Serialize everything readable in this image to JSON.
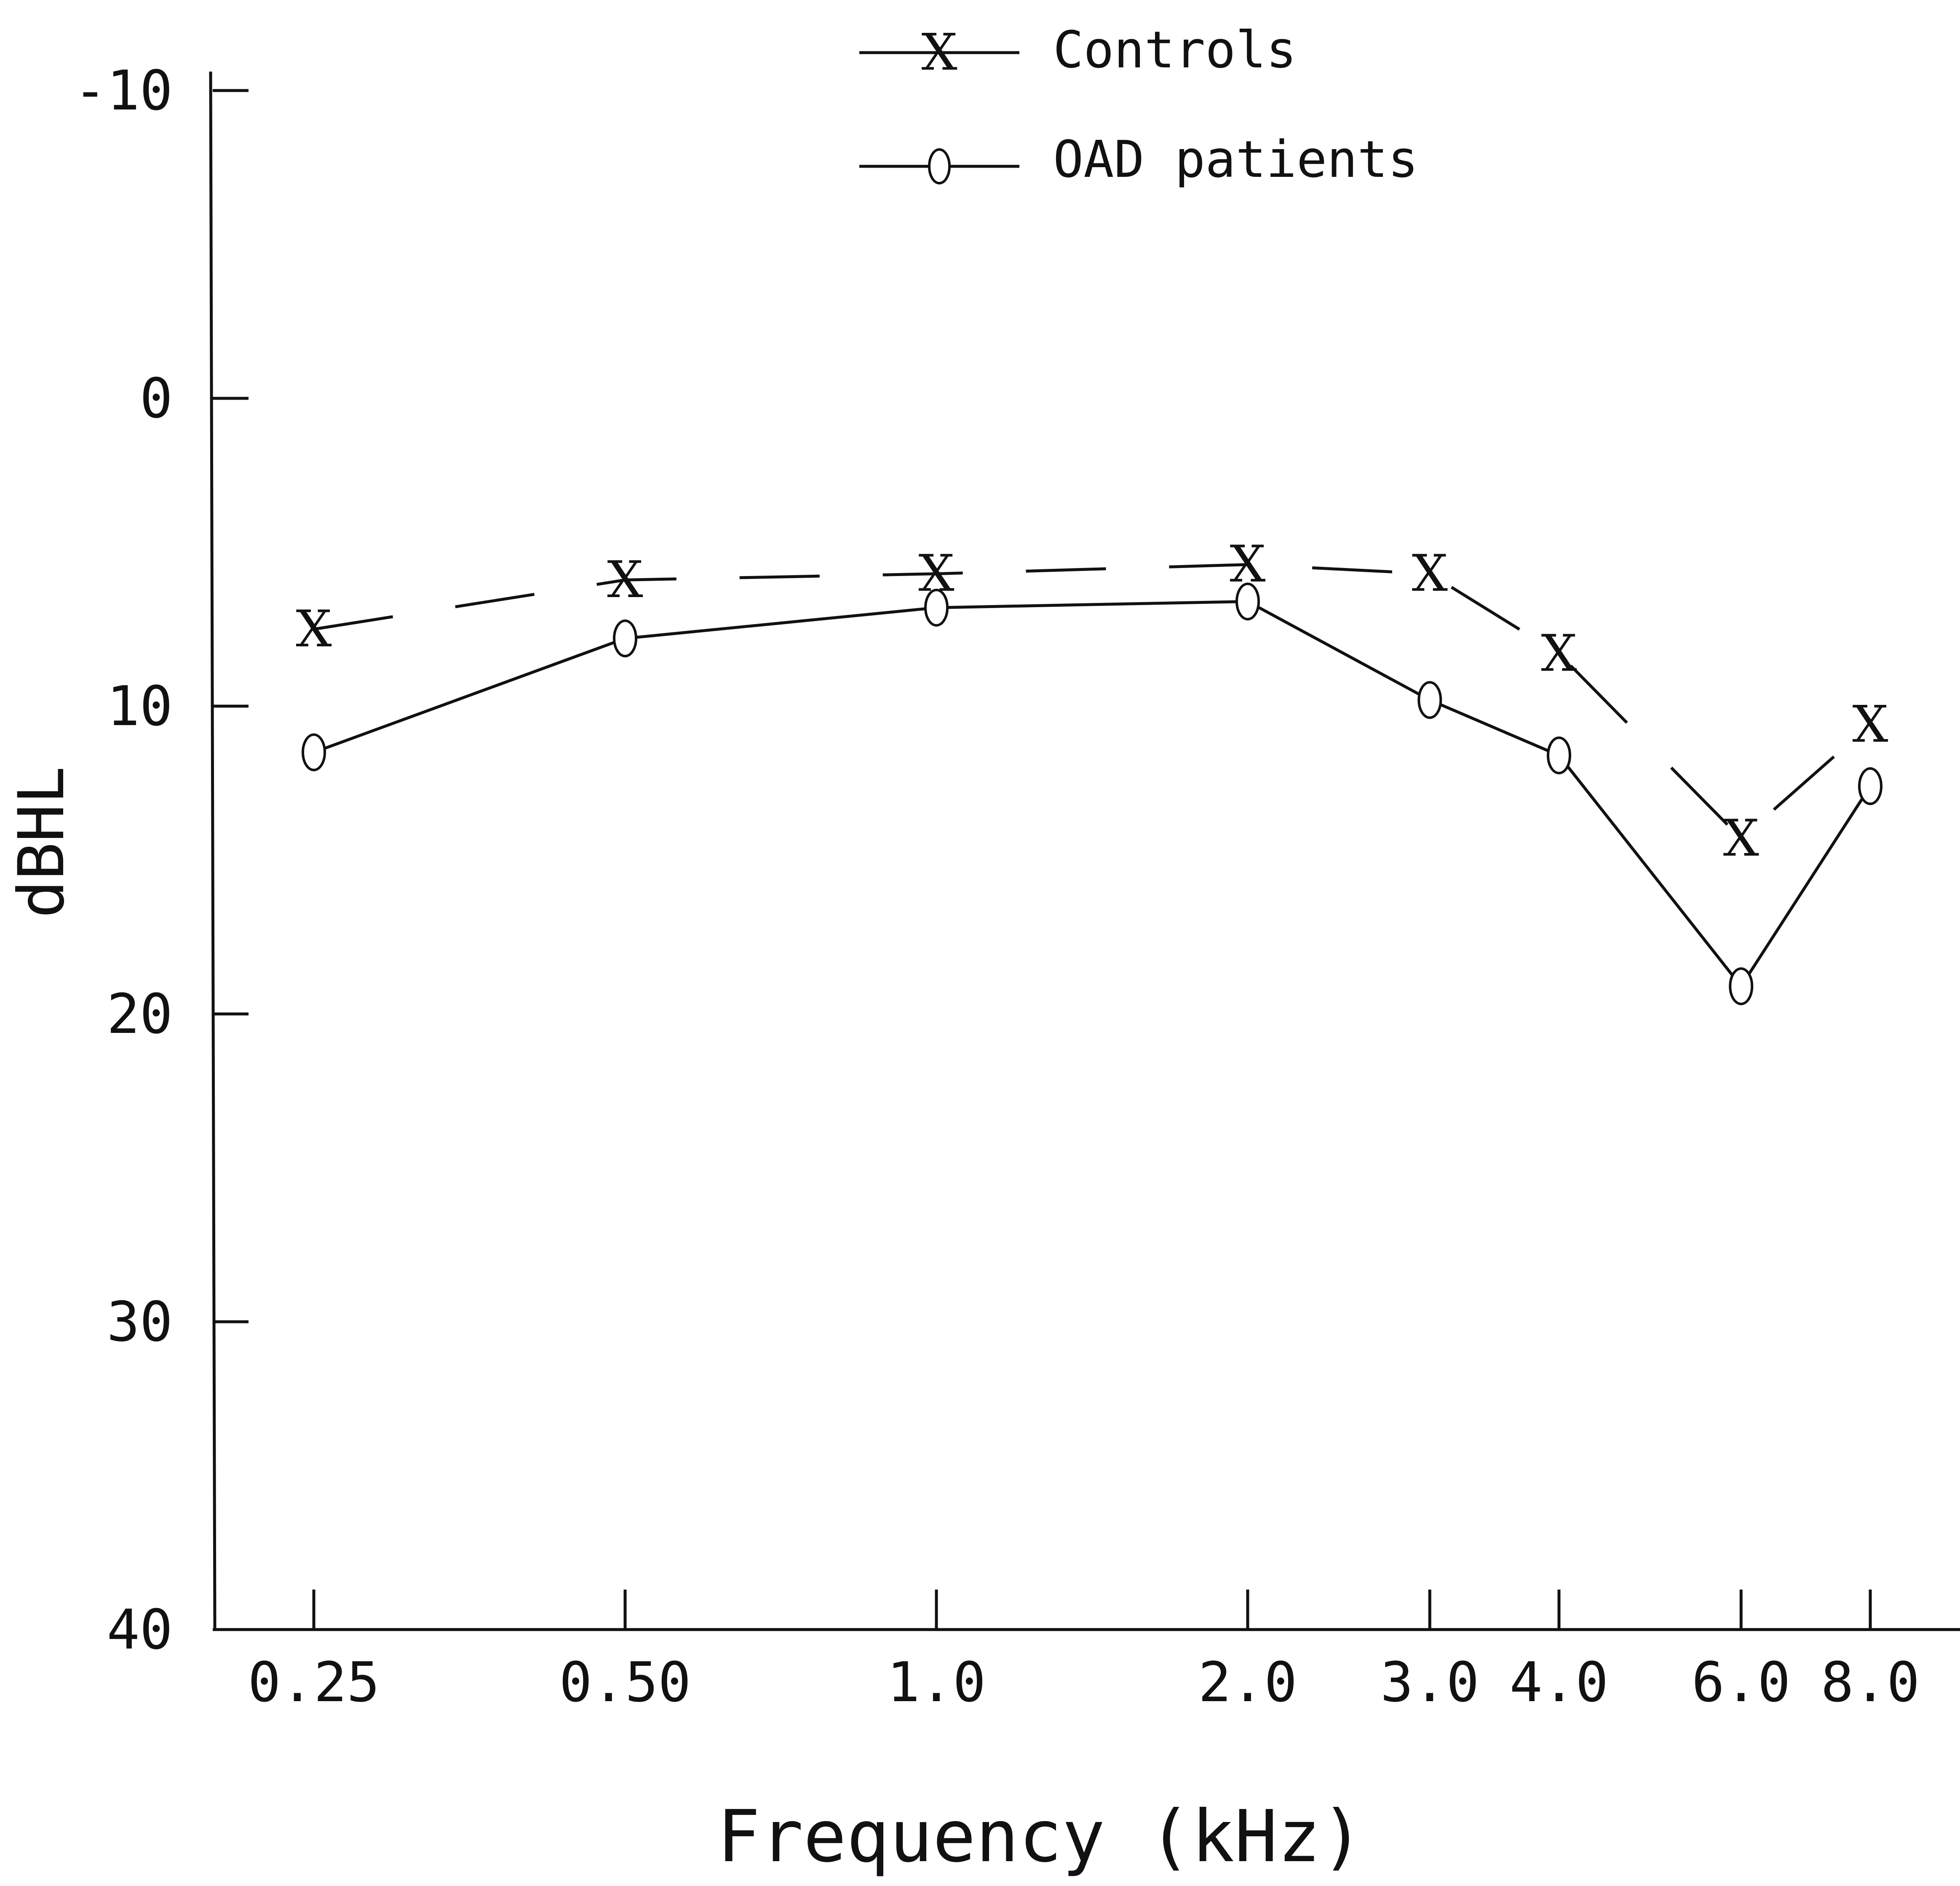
{
  "chart_data": {
    "type": "line",
    "title": "",
    "xlabel": "Frequency (kHz)",
    "ylabel": "dBHL",
    "categories": [
      "0.25",
      "0.50",
      "1.0",
      "2.0",
      "3.0",
      "4.0",
      "6.0",
      "8.0"
    ],
    "x": [
      0.25,
      0.5,
      1.0,
      2.0,
      3.0,
      4.0,
      6.0,
      8.0
    ],
    "x_scale": "log",
    "ylim": [
      40,
      -10
    ],
    "yticks": [
      -10,
      0,
      10,
      20,
      30,
      40
    ],
    "ytick_labels": [
      "-10",
      "0",
      "10",
      "20",
      "30",
      "40"
    ],
    "y_inverted": true,
    "grid": false,
    "legend_position": "top",
    "series": [
      {
        "name": "Controls",
        "marker": "X",
        "line_style": "dashed",
        "color": "#111111",
        "values": [
          7.5,
          5.9,
          5.7,
          5.4,
          5.7,
          8.3,
          14.3,
          10.6
        ]
      },
      {
        "name": "OAD patients",
        "marker": "o",
        "line_style": "solid",
        "color": "#111111",
        "values": [
          11.5,
          7.8,
          6.8,
          6.6,
          9.8,
          11.6,
          19.1,
          12.6
        ]
      }
    ]
  }
}
